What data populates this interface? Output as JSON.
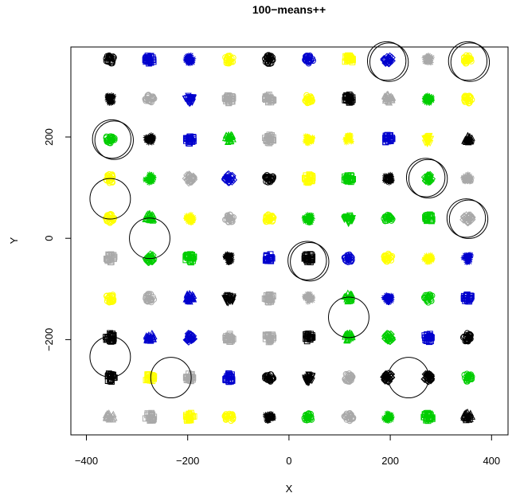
{
  "chart_data": {
    "type": "scatter",
    "title": "100−means++",
    "xlabel": "X",
    "ylabel": "Y",
    "xlim": [
      -400,
      400
    ],
    "ylim": [
      -380,
      380
    ],
    "x_ticks": [
      -400,
      -200,
      0,
      200,
      400
    ],
    "x_tick_labels": [
      "−400",
      "−200",
      "0",
      "200",
      "400"
    ],
    "y_ticks": [
      -200,
      0,
      200
    ],
    "y_tick_labels": [
      "−200",
      "0",
      "200"
    ],
    "grid": false,
    "legend": "none",
    "grid_centers": [
      -353,
      -275,
      -196,
      -118,
      -39,
      39,
      118,
      196,
      275,
      353
    ],
    "colors": {
      "black": "#000000",
      "blue": "#0000CD",
      "yellow": "#FFFF00",
      "gray": "#A9A9A9",
      "green": "#00CD00"
    },
    "clusters_by_row_top_to_bottom": [
      [
        {
          "c": "black",
          "s": "circle"
        },
        {
          "c": "blue",
          "s": "square"
        },
        {
          "c": "blue",
          "s": "star"
        },
        {
          "c": "yellow",
          "s": "circle"
        },
        {
          "c": "black",
          "s": "circle"
        },
        {
          "c": "blue",
          "s": "circle"
        },
        {
          "c": "yellow",
          "s": "square"
        },
        {
          "c": "blue",
          "s": "diamond"
        },
        {
          "c": "gray",
          "s": "star"
        },
        {
          "c": "yellow",
          "s": "circle"
        }
      ],
      [
        {
          "c": "black",
          "s": "star"
        },
        {
          "c": "gray",
          "s": "circle"
        },
        {
          "c": "blue",
          "s": "triangle-down"
        },
        {
          "c": "gray",
          "s": "square"
        },
        {
          "c": "gray",
          "s": "square"
        },
        {
          "c": "yellow",
          "s": "circle"
        },
        {
          "c": "black",
          "s": "square"
        },
        {
          "c": "gray",
          "s": "triangle"
        },
        {
          "c": "green",
          "s": "star"
        },
        {
          "c": "yellow",
          "s": "circle"
        }
      ],
      [
        {
          "c": "green",
          "s": "circle"
        },
        {
          "c": "black",
          "s": "star"
        },
        {
          "c": "blue",
          "s": "square"
        },
        {
          "c": "green",
          "s": "triangle"
        },
        {
          "c": "gray",
          "s": "square"
        },
        {
          "c": "yellow",
          "s": "star"
        },
        {
          "c": "yellow",
          "s": "star"
        },
        {
          "c": "blue",
          "s": "square"
        },
        {
          "c": "yellow",
          "s": "triangle-down"
        },
        {
          "c": "black",
          "s": "triangle"
        }
      ],
      [
        {
          "c": "yellow",
          "s": "circle"
        },
        {
          "c": "green",
          "s": "star"
        },
        {
          "c": "gray",
          "s": "diamond"
        },
        {
          "c": "blue",
          "s": "diamond"
        },
        {
          "c": "black",
          "s": "circle"
        },
        {
          "c": "yellow",
          "s": "square"
        },
        {
          "c": "green",
          "s": "square"
        },
        {
          "c": "black",
          "s": "star"
        },
        {
          "c": "green",
          "s": "diamond"
        },
        {
          "c": "gray",
          "s": "star"
        }
      ],
      [
        {
          "c": "yellow",
          "s": "circle"
        },
        {
          "c": "green",
          "s": "triangle"
        },
        {
          "c": "yellow",
          "s": "star"
        },
        {
          "c": "gray",
          "s": "circle"
        },
        {
          "c": "yellow",
          "s": "circle"
        },
        {
          "c": "green",
          "s": "star"
        },
        {
          "c": "green",
          "s": "triangle-down"
        },
        {
          "c": "green",
          "s": "circle"
        },
        {
          "c": "green",
          "s": "square"
        },
        {
          "c": "gray",
          "s": "diamond"
        }
      ],
      [
        {
          "c": "gray",
          "s": "square"
        },
        {
          "c": "green",
          "s": "diamond"
        },
        {
          "c": "green",
          "s": "square"
        },
        {
          "c": "black",
          "s": "star"
        },
        {
          "c": "blue",
          "s": "square"
        },
        {
          "c": "black",
          "s": "square"
        },
        {
          "c": "blue",
          "s": "circle"
        },
        {
          "c": "yellow",
          "s": "circle"
        },
        {
          "c": "yellow",
          "s": "star"
        },
        {
          "c": "blue",
          "s": "star"
        }
      ],
      [
        {
          "c": "yellow",
          "s": "circle"
        },
        {
          "c": "gray",
          "s": "circle"
        },
        {
          "c": "blue",
          "s": "triangle"
        },
        {
          "c": "black",
          "s": "triangle-down"
        },
        {
          "c": "gray",
          "s": "square"
        },
        {
          "c": "gray",
          "s": "star"
        },
        {
          "c": "green",
          "s": "triangle"
        },
        {
          "c": "blue",
          "s": "star"
        },
        {
          "c": "green",
          "s": "circle"
        },
        {
          "c": "blue",
          "s": "square"
        }
      ],
      [
        {
          "c": "black",
          "s": "square"
        },
        {
          "c": "blue",
          "s": "triangle"
        },
        {
          "c": "blue",
          "s": "diamond"
        },
        {
          "c": "gray",
          "s": "square"
        },
        {
          "c": "gray",
          "s": "square"
        },
        {
          "c": "black",
          "s": "square"
        },
        {
          "c": "green",
          "s": "triangle"
        },
        {
          "c": "green",
          "s": "diamond"
        },
        {
          "c": "blue",
          "s": "square"
        },
        {
          "c": "black",
          "s": "circle"
        }
      ],
      [
        {
          "c": "black",
          "s": "square"
        },
        {
          "c": "yellow",
          "s": "square"
        },
        {
          "c": "gray",
          "s": "square"
        },
        {
          "c": "blue",
          "s": "square"
        },
        {
          "c": "black",
          "s": "circle"
        },
        {
          "c": "black",
          "s": "triangle-down"
        },
        {
          "c": "gray",
          "s": "circle"
        },
        {
          "c": "black",
          "s": "diamond"
        },
        {
          "c": "black",
          "s": "diamond"
        },
        {
          "c": "green",
          "s": "circle"
        }
      ],
      [
        {
          "c": "gray",
          "s": "triangle"
        },
        {
          "c": "gray",
          "s": "square"
        },
        {
          "c": "yellow",
          "s": "square"
        },
        {
          "c": "yellow",
          "s": "circle"
        },
        {
          "c": "black",
          "s": "star"
        },
        {
          "c": "green",
          "s": "circle"
        },
        {
          "c": "gray",
          "s": "circle"
        },
        {
          "c": "green",
          "s": "star"
        },
        {
          "c": "green",
          "s": "square"
        },
        {
          "c": "black",
          "s": "triangle"
        }
      ]
    ],
    "center_circles": [
      {
        "x": 193,
        "y": 350,
        "r": 38,
        "n": 2
      },
      {
        "x": 353,
        "y": 350,
        "r": 38,
        "n": 2
      },
      {
        "x": -350,
        "y": 196,
        "r": 38,
        "n": 2
      },
      {
        "x": 270,
        "y": 120,
        "r": 38,
        "n": 2
      },
      {
        "x": -353,
        "y": 78,
        "r": 40,
        "n": 1
      },
      {
        "x": 350,
        "y": 40,
        "r": 38,
        "n": 2
      },
      {
        "x": -275,
        "y": 0,
        "r": 40,
        "n": 1
      },
      {
        "x": 36,
        "y": -44,
        "r": 38,
        "n": 2
      },
      {
        "x": 118,
        "y": -156,
        "r": 40,
        "n": 1
      },
      {
        "x": -353,
        "y": -234,
        "r": 40,
        "n": 1
      },
      {
        "x": -233,
        "y": -275,
        "r": 40,
        "n": 1
      },
      {
        "x": 236,
        "y": -275,
        "r": 40,
        "n": 1
      }
    ]
  }
}
